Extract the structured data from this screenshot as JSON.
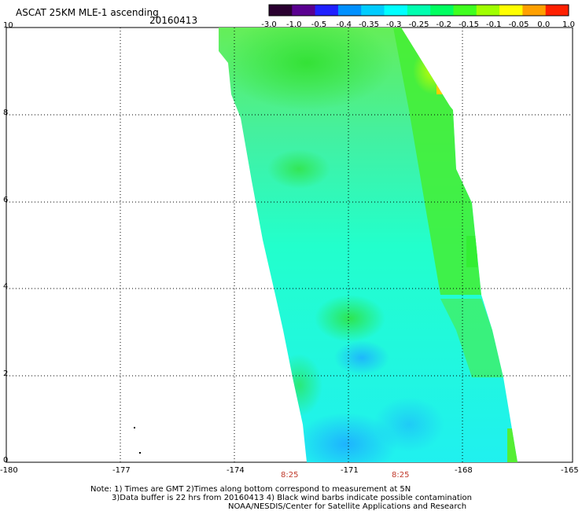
{
  "header": {
    "title": "ASCAT 25KM MLE-1 ascending",
    "date": "20160413"
  },
  "colorbar": {
    "labels": [
      "-3.0",
      "-1.0",
      "-0.5",
      "-0.4",
      "-0.35",
      "-0.3",
      "-0.25",
      "-0.2",
      "-0.15",
      "-0.1",
      "-0.05",
      "0.0",
      "1.0"
    ],
    "colors": [
      "#2a0030",
      "#5a0090",
      "#2020ff",
      "#0090ff",
      "#00ccff",
      "#00ffff",
      "#00ffb0",
      "#00ff60",
      "#40ff20",
      "#a0ff00",
      "#ffff00",
      "#ffa000",
      "#ff2000"
    ]
  },
  "axes": {
    "x_ticks": [
      "-180",
      "-177",
      "-174",
      "-171",
      "-168",
      "-165"
    ],
    "y_ticks": [
      "10",
      "8",
      "6",
      "4",
      "2",
      "0"
    ]
  },
  "times": [
    "8:25",
    "8:25"
  ],
  "notes": {
    "line1": "Note: 1) Times are GMT 2)Times along bottom correspond to measurement at 5N",
    "line2": "3)Data buffer is 22 hrs from 20160413 4) Black wind barbs indicate possible contamination",
    "line3": "NOAA/NESDIS/Center for Satellite Applications and Research"
  },
  "swath_colors": {
    "green": "#44ee44",
    "cyan": "#22ffdd",
    "blue": "#1fc8ff",
    "yellow": "#ddff00"
  }
}
